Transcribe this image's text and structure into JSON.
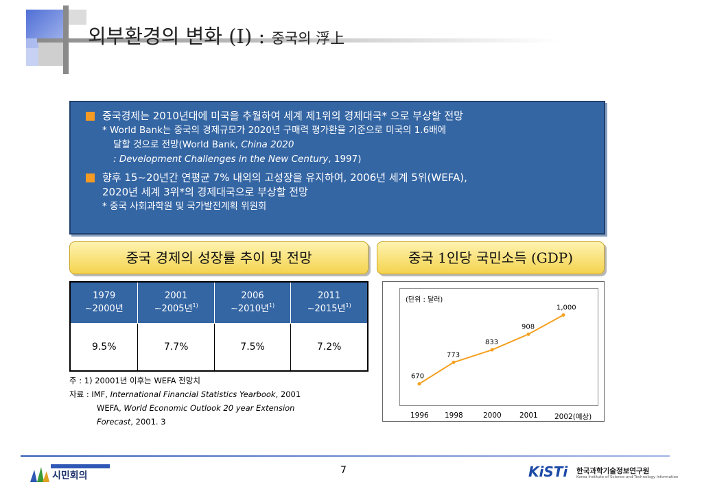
{
  "title": {
    "main": "외부환경의 변화 (I) :",
    "sub": "중국의 浮上"
  },
  "box": {
    "item1": {
      "text": "중국경제는 2010년대에 미국을 추월하여 세계 제1위의 경제대국* 으로 부상할 전망",
      "note_line1": "* World Bank는 중국의 경제규모가 2020년 구매력 평가환율 기준으로 미국의 1.6배에",
      "note_line2_a": "달할 것으로 전망(World Bank, ",
      "note_line2_i": "China 2020",
      "note_line3_i": ": Development Challenges in the New Century",
      "note_line3_b": ", 1997)"
    },
    "item2": {
      "text_line1": "향후 15~20년간 연평균 7% 내외의 고성장을 유지하여, 2006년 세계 5위(WEFA),",
      "text_line2": "2020년 세계 3위*의 경제대국으로 부상할 전망",
      "note": "* 중국 사회과학원 및 국가발전계획 위원회"
    }
  },
  "headers": {
    "left": "중국 경제의 성장률 추이 및 전망",
    "right": "중국 1인당 국민소득 (GDP)"
  },
  "table": {
    "cols": [
      {
        "l1": "1979",
        "l2": "~2000년",
        "fn": ""
      },
      {
        "l1": "2001",
        "l2": "~2005년",
        "fn": "1)"
      },
      {
        "l1": "2006",
        "l2": "~2010년",
        "fn": "1)"
      },
      {
        "l1": "2011",
        "l2": "~2015년",
        "fn": "1)"
      }
    ],
    "values": [
      "9.5%",
      "7.7%",
      "7.5%",
      "7.2%"
    ]
  },
  "notes": {
    "note": "주 : 1) 20001년 이후는 WEFA 전망치",
    "src_a": "자료 : IMF, ",
    "src_i1": "International Financial Statistics Yearbook",
    "src_b": ", 2001",
    "src2_a": "WEFA, ",
    "src2_i": "World Economic Outlook 20 year Extension",
    "src3_i": "Forecast",
    "src3_b": ", 2001. 3"
  },
  "chart_data": {
    "type": "line",
    "unit_label": "(단위 : 달러)",
    "x": [
      "1996",
      "1998",
      "2000",
      "2001",
      "2002(예상)"
    ],
    "values": [
      670,
      773,
      833,
      908,
      1000
    ],
    "data_labels": [
      "670",
      "773",
      "833",
      "908",
      "1,000"
    ],
    "ylim": [
      600,
      1100
    ],
    "color": "#f4a020"
  },
  "footer": {
    "page": "7",
    "left_logo": "시민회의",
    "right_logo": "KiSTi",
    "right_name": "한국과학기술정보연구원",
    "right_eng": "Korea Institute of Science and Technology Information"
  }
}
